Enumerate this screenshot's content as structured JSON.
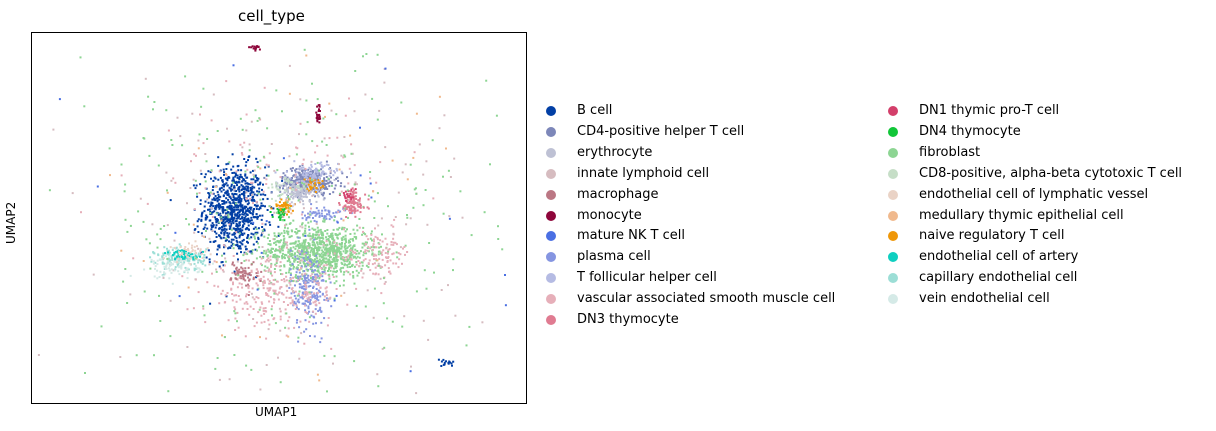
{
  "chart_data": {
    "type": "scatter",
    "title": "cell_type",
    "xlabel": "UMAP1",
    "ylabel": "UMAP2",
    "xlim": [
      0,
      100
    ],
    "ylim": [
      0,
      100
    ],
    "grid": false,
    "legend_position": "right",
    "categories": [
      {
        "name": "B cell",
        "color": "#023fa5"
      },
      {
        "name": "CD4-positive helper T cell",
        "color": "#7d87b9"
      },
      {
        "name": "erythrocyte",
        "color": "#bec1d4"
      },
      {
        "name": "innate lymphoid cell",
        "color": "#d6bcc0"
      },
      {
        "name": "macrophage",
        "color": "#bb7784"
      },
      {
        "name": "monocyte",
        "color": "#8e063b"
      },
      {
        "name": "mature NK T cell",
        "color": "#4a6fe3"
      },
      {
        "name": "plasma cell",
        "color": "#8595e1"
      },
      {
        "name": "T follicular helper cell",
        "color": "#b5bbe3"
      },
      {
        "name": "vascular associated smooth muscle cell",
        "color": "#e6afb9"
      },
      {
        "name": "DN3 thymocyte",
        "color": "#e07b91"
      },
      {
        "name": "DN1 thymic pro-T cell",
        "color": "#d33f6a"
      },
      {
        "name": "DN4 thymocyte",
        "color": "#11c638"
      },
      {
        "name": "fibroblast",
        "color": "#8dd593"
      },
      {
        "name": "CD8-positive, alpha-beta cytotoxic T cell",
        "color": "#c6dec7"
      },
      {
        "name": "endothelial cell of lymphatic vessel",
        "color": "#ead3c6"
      },
      {
        "name": "medullary thymic epithelial cell",
        "color": "#f0b98d"
      },
      {
        "name": "naive regulatory T cell",
        "color": "#ef9708"
      },
      {
        "name": "endothelial cell of artery",
        "color": "#0fcfc0"
      },
      {
        "name": "capillary endothelial cell",
        "color": "#9cded6"
      },
      {
        "name": "vein endothelial cell",
        "color": "#d5eae7"
      }
    ],
    "clusters": [
      {
        "category": "B cell",
        "x": 41,
        "y": 52,
        "sx": 3.2,
        "sy": 6.0,
        "n": 800
      },
      {
        "category": "fibroblast",
        "x": 58,
        "y": 41,
        "sx": 5.5,
        "sy": 3.5,
        "n": 900
      },
      {
        "category": "plasma cell",
        "x": 56,
        "y": 31,
        "sx": 1.8,
        "sy": 5.5,
        "n": 200
      },
      {
        "category": "plasma cell",
        "x": 59,
        "y": 51,
        "sx": 2.2,
        "sy": 1.0,
        "n": 60
      },
      {
        "category": "CD4-positive helper T cell",
        "x": 56,
        "y": 60,
        "sx": 2.8,
        "sy": 1.8,
        "n": 350
      },
      {
        "category": "erythrocyte",
        "x": 54,
        "y": 57,
        "sx": 2.0,
        "sy": 1.5,
        "n": 120
      },
      {
        "category": "T follicular helper cell",
        "x": 57,
        "y": 62,
        "sx": 2.5,
        "sy": 1.4,
        "n": 100
      },
      {
        "category": "naive regulatory T cell",
        "x": 51,
        "y": 53,
        "sx": 1.0,
        "sy": 1.0,
        "n": 50
      },
      {
        "category": "naive regulatory T cell",
        "x": 57,
        "y": 59,
        "sx": 0.9,
        "sy": 0.8,
        "n": 30
      },
      {
        "category": "DN4 thymocyte",
        "x": 50.5,
        "y": 51,
        "sx": 0.8,
        "sy": 0.8,
        "n": 25
      },
      {
        "category": "DN3 thymocyte",
        "x": 65,
        "y": 54,
        "sx": 1.3,
        "sy": 2.0,
        "n": 100
      },
      {
        "category": "DN1 thymic pro-T cell",
        "x": 64,
        "y": 56,
        "sx": 0.8,
        "sy": 0.8,
        "n": 20
      },
      {
        "category": "vascular associated smooth muscle cell",
        "x": 49,
        "y": 30,
        "sx": 7.0,
        "sy": 4.5,
        "n": 300
      },
      {
        "category": "vascular associated smooth muscle cell",
        "x": 70,
        "y": 40,
        "sx": 3.5,
        "sy": 3.0,
        "n": 120
      },
      {
        "category": "vascular associated smooth muscle cell",
        "x": 50,
        "y": 60,
        "sx": 12.0,
        "sy": 9.0,
        "n": 100
      },
      {
        "category": "innate lymphoid cell",
        "x": 50,
        "y": 48,
        "sx": 20.0,
        "sy": 22.0,
        "n": 180
      },
      {
        "category": "macrophage",
        "x": 43,
        "y": 35,
        "sx": 1.3,
        "sy": 1.8,
        "n": 60
      },
      {
        "category": "capillary endothelial cell",
        "x": 30,
        "y": 39,
        "sx": 2.5,
        "sy": 1.6,
        "n": 130
      },
      {
        "category": "vein endothelial cell",
        "x": 29,
        "y": 37,
        "sx": 2.5,
        "sy": 1.8,
        "n": 90
      },
      {
        "category": "endothelial cell of artery",
        "x": 31,
        "y": 40,
        "sx": 2.0,
        "sy": 0.6,
        "n": 50
      },
      {
        "category": "endothelial cell of lymphatic vessel",
        "x": 32,
        "y": 41,
        "sx": 2.0,
        "sy": 1.5,
        "n": 40
      },
      {
        "category": "fibroblast",
        "x": 50,
        "y": 48,
        "sx": 22.0,
        "sy": 22.0,
        "n": 260
      },
      {
        "category": "CD8-positive, alpha-beta cytotoxic T cell",
        "x": 52,
        "y": 58,
        "sx": 2.0,
        "sy": 1.5,
        "n": 40
      },
      {
        "category": "medullary thymic epithelial cell",
        "x": 50,
        "y": 50,
        "sx": 22.0,
        "sy": 24.0,
        "n": 40
      },
      {
        "category": "monocyte",
        "x": 58,
        "y": 78,
        "sx": 0.3,
        "sy": 1.5,
        "n": 25
      },
      {
        "category": "monocyte",
        "x": 45,
        "y": 96,
        "sx": 0.6,
        "sy": 0.3,
        "n": 15
      },
      {
        "category": "B cell",
        "x": 84,
        "y": 11,
        "sx": 0.8,
        "sy": 0.5,
        "n": 15
      },
      {
        "category": "mature NK T cell",
        "x": 50,
        "y": 50,
        "sx": 24.0,
        "sy": 22.0,
        "n": 25
      }
    ]
  }
}
